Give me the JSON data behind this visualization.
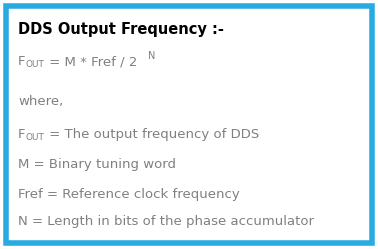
{
  "title": "DDS Output Frequency :-",
  "title_color": "#000000",
  "title_fontsize": 10.5,
  "formula_line": [
    "F",
    "OUT",
    " = M * Fref / 2",
    "N"
  ],
  "where": "where,",
  "lines": [
    [
      "F",
      "OUT",
      " = The output frequency of DDS"
    ],
    [
      "M = Binary tuning word"
    ],
    [
      "Fref = Reference clock frequency"
    ],
    [
      "N = Length in bits of the phase accumulator"
    ]
  ],
  "text_color": "#808080",
  "text_fontsize": 9.5,
  "sub_fontsize": 7.0,
  "bg_color": "#ffffff",
  "border_color": "#29abe2",
  "border_linewidth": 4.0,
  "fig_width": 3.78,
  "fig_height": 2.49,
  "dpi": 100
}
